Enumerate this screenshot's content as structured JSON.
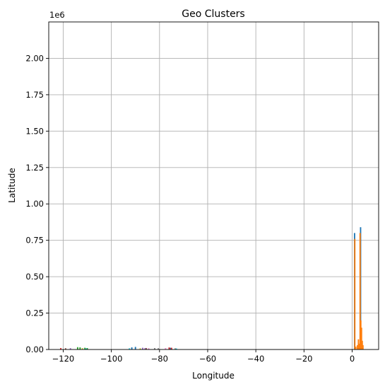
{
  "chart_data": {
    "type": "bar",
    "title": "Geo Clusters",
    "xlabel": "Longitude",
    "ylabel": "Latitude",
    "y_offset_text": "1e6",
    "xlim": [
      -126,
      11
    ],
    "ylim": [
      0,
      2250000
    ],
    "xticks": [
      -120,
      -100,
      -80,
      -60,
      -40,
      -20,
      0
    ],
    "yticks": [
      0,
      250000,
      500000,
      750000,
      1000000,
      1250000,
      1500000,
      1750000,
      2000000
    ],
    "ytick_labels": [
      "0.00",
      "0.25",
      "0.50",
      "0.75",
      "1.00",
      "1.25",
      "1.50",
      "1.75",
      "2.00"
    ],
    "grid": true,
    "series": [
      {
        "color": "#1f77b4",
        "x": [
          1.0,
          1.3,
          3.5,
          3.8,
          -91.5,
          -90.0,
          -75.5
        ],
        "values": [
          800000,
          15000,
          840000,
          50000,
          15000,
          18000,
          12000
        ]
      },
      {
        "color": "#ff7f0e",
        "x": [
          1.1,
          1.5,
          2.2,
          2.6,
          3.0,
          3.3,
          3.6,
          3.9,
          4.2,
          4.5
        ],
        "values": [
          760000,
          20000,
          30000,
          70000,
          40000,
          800000,
          200000,
          150000,
          60000,
          30000
        ]
      },
      {
        "color": "#2ca02c",
        "x": [
          -114.0,
          -113.0,
          -111.0,
          -110.0
        ],
        "values": [
          16000,
          15000,
          12000,
          10000
        ]
      },
      {
        "color": "#d62728",
        "x": [
          -121.0,
          -76.0,
          -75.0
        ],
        "values": [
          10000,
          14000,
          12000
        ]
      },
      {
        "color": "#9467bd",
        "x": [
          -117.0,
          -87.0,
          -86.0
        ],
        "values": [
          9000,
          12000,
          10000
        ]
      },
      {
        "color": "#8c564b",
        "x": [
          -119.0,
          -85.5
        ],
        "values": [
          9000,
          10000
        ]
      },
      {
        "color": "#e377c2",
        "x": [
          -84.5,
          -77.5
        ],
        "values": [
          8000,
          9000
        ]
      },
      {
        "color": "#7f7f7f",
        "x": [
          -82.0,
          -80.5,
          -73.5
        ],
        "values": [
          10000,
          9000,
          8000
        ]
      },
      {
        "color": "#bcbd22",
        "x": [
          -112.0,
          -88.0
        ],
        "values": [
          9000,
          8000
        ]
      },
      {
        "color": "#17becf",
        "x": [
          -110.5,
          -92.5,
          -73.0
        ],
        "values": [
          8000,
          8000,
          7000
        ]
      }
    ]
  }
}
